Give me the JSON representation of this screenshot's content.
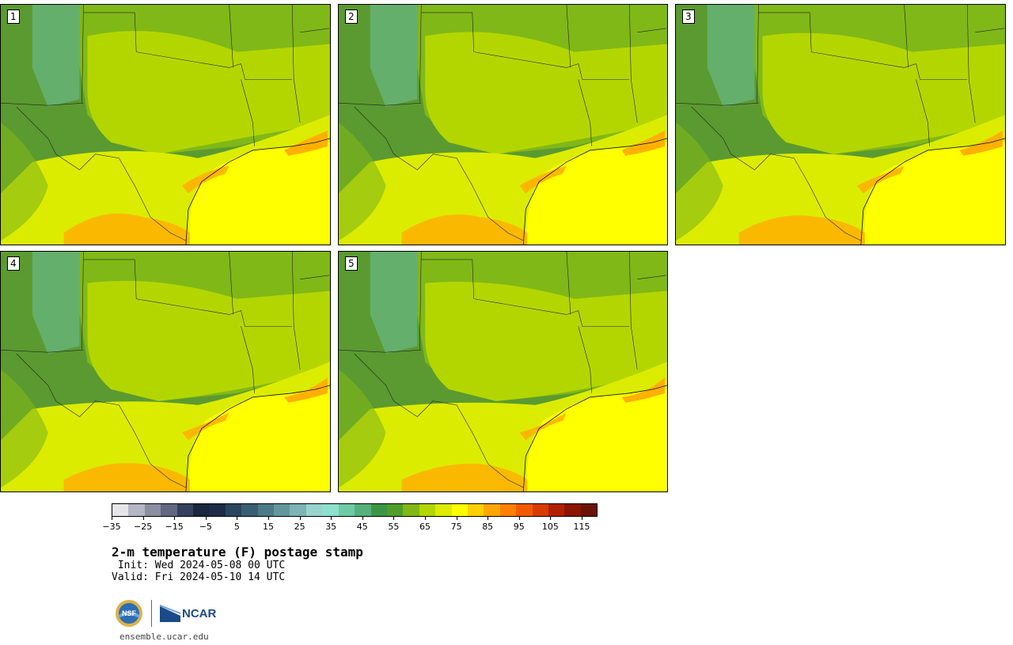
{
  "map": {
    "title": "2-m temperature (F) postage stamp",
    "init": " Init: Wed 2024-05-08 00 UTC",
    "valid": "Valid: Fri 2024-05-10 14 UTC",
    "website": "ensemble.ucar.edu",
    "logos": {
      "nsf": "NSF",
      "ncar": "NCAR"
    },
    "panels": [
      {
        "label": "1"
      },
      {
        "label": "2"
      },
      {
        "label": "3"
      },
      {
        "label": "4"
      },
      {
        "label": "5"
      }
    ],
    "colorbar": {
      "ticks": [
        "−35",
        "−25",
        "−15",
        "−5",
        "5",
        "15",
        "25",
        "35",
        "45",
        "55",
        "65",
        "75",
        "85",
        "95",
        "105",
        "115"
      ],
      "colors": [
        "#e6e6ea",
        "#b5b5c3",
        "#8c8ea3",
        "#626882",
        "#353f5e",
        "#1a2540",
        "#1d2b46",
        "#2a4560",
        "#3a5e74",
        "#4d7a88",
        "#64969e",
        "#7cb3b4",
        "#98d4cc",
        "#8ce0cc",
        "#6fcaa6",
        "#55b07c",
        "#3d9645",
        "#4f9e2a",
        "#80b818",
        "#b4d600",
        "#dcec00",
        "#ffff00",
        "#ffd000",
        "#ffa500",
        "#ff7f00",
        "#f25a00",
        "#d83c00",
        "#b02000",
        "#8a1500",
        "#6a1208"
      ]
    },
    "palette": {
      "dark": "#5a9a30",
      "mid": "#80b818",
      "light": "#b4d600",
      "lemon": "#dcec00",
      "yellow": "#ffff00",
      "orange": "#ffb000",
      "deep": "#ff8c00",
      "teal": "#69b888"
    }
  }
}
